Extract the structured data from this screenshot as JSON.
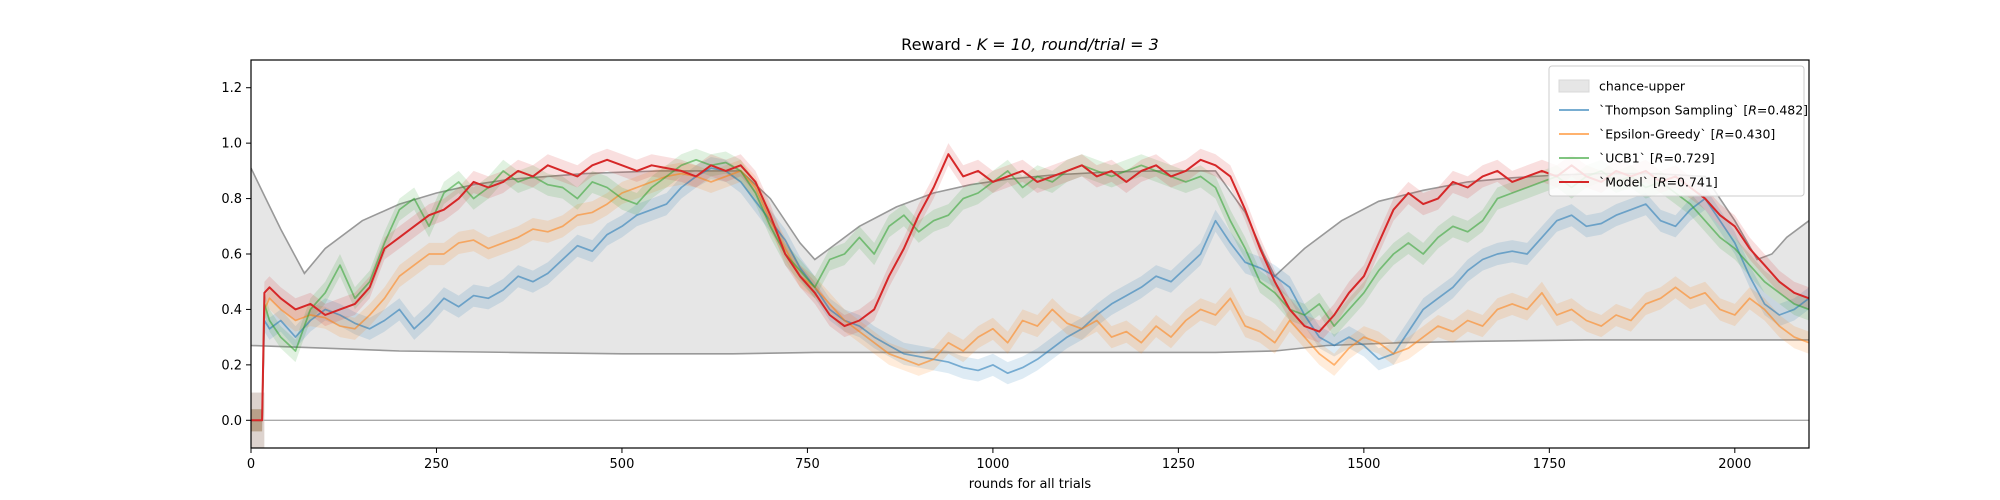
{
  "chart_data": {
    "type": "line",
    "title_prefix": "Reward - ",
    "title_k": "K = 10, ",
    "title_round": "round/trial = 3",
    "xlabel": "rounds for all trials",
    "ylabel": "",
    "xlim": [
      0,
      2100
    ],
    "ylim": [
      -0.1,
      1.3
    ],
    "xticks": [
      0,
      250,
      500,
      750,
      1000,
      1250,
      1500,
      1750,
      2000
    ],
    "yticks": [
      0.0,
      0.2,
      0.4,
      0.6,
      0.8,
      1.0,
      1.2
    ],
    "grid": false,
    "legend_position": "top-right",
    "chance_band": {
      "name": "chance-upper",
      "color": "#e6e6e6",
      "upper": [
        [
          0,
          0.91
        ],
        [
          20,
          0.8
        ],
        [
          40,
          0.69
        ],
        [
          60,
          0.59
        ],
        [
          72,
          0.53
        ],
        [
          100,
          0.62
        ],
        [
          150,
          0.72
        ],
        [
          200,
          0.78
        ],
        [
          250,
          0.82
        ],
        [
          300,
          0.85
        ],
        [
          350,
          0.87
        ],
        [
          400,
          0.88
        ],
        [
          450,
          0.89
        ],
        [
          500,
          0.895
        ],
        [
          550,
          0.9
        ],
        [
          600,
          0.9
        ],
        [
          660,
          0.9
        ],
        [
          700,
          0.8
        ],
        [
          740,
          0.64
        ],
        [
          760,
          0.58
        ],
        [
          780,
          0.62
        ],
        [
          820,
          0.7
        ],
        [
          870,
          0.77
        ],
        [
          920,
          0.82
        ],
        [
          970,
          0.85
        ],
        [
          1020,
          0.87
        ],
        [
          1080,
          0.885
        ],
        [
          1150,
          0.895
        ],
        [
          1220,
          0.9
        ],
        [
          1300,
          0.9
        ],
        [
          1340,
          0.75
        ],
        [
          1365,
          0.6
        ],
        [
          1380,
          0.52
        ],
        [
          1420,
          0.62
        ],
        [
          1470,
          0.72
        ],
        [
          1520,
          0.79
        ],
        [
          1580,
          0.83
        ],
        [
          1640,
          0.86
        ],
        [
          1700,
          0.875
        ],
        [
          1760,
          0.885
        ],
        [
          1820,
          0.89
        ],
        [
          1890,
          0.89
        ],
        [
          1960,
          0.88
        ],
        [
          2000,
          0.72
        ],
        [
          2030,
          0.58
        ],
        [
          2050,
          0.6
        ],
        [
          2070,
          0.66
        ],
        [
          2100,
          0.72
        ]
      ],
      "lower": [
        [
          0,
          0.27
        ],
        [
          100,
          0.26
        ],
        [
          200,
          0.25
        ],
        [
          350,
          0.245
        ],
        [
          500,
          0.24
        ],
        [
          650,
          0.24
        ],
        [
          760,
          0.245
        ],
        [
          900,
          0.245
        ],
        [
          1000,
          0.245
        ],
        [
          1100,
          0.245
        ],
        [
          1200,
          0.245
        ],
        [
          1300,
          0.245
        ],
        [
          1380,
          0.25
        ],
        [
          1450,
          0.27
        ],
        [
          1550,
          0.28
        ],
        [
          1650,
          0.285
        ],
        [
          1800,
          0.29
        ],
        [
          1950,
          0.29
        ],
        [
          2100,
          0.29
        ]
      ]
    },
    "zero_line": 0.0,
    "series": [
      {
        "name": "`Thompson Sampling` [",
        "r_value": "=0.482]",
        "color": "#1f77b4",
        "band": 0.04,
        "x": [
          0,
          15,
          18,
          25,
          40,
          60,
          80,
          100,
          120,
          140,
          160,
          180,
          200,
          220,
          240,
          260,
          280,
          300,
          320,
          340,
          360,
          380,
          400,
          420,
          440,
          460,
          480,
          500,
          520,
          540,
          560,
          580,
          600,
          620,
          640,
          660,
          680,
          700,
          720,
          740,
          760,
          780,
          800,
          820,
          840,
          860,
          880,
          900,
          920,
          940,
          960,
          980,
          1000,
          1020,
          1040,
          1060,
          1080,
          1100,
          1120,
          1140,
          1160,
          1180,
          1200,
          1220,
          1240,
          1260,
          1280,
          1300,
          1320,
          1340,
          1360,
          1380,
          1400,
          1420,
          1440,
          1460,
          1480,
          1500,
          1520,
          1540,
          1560,
          1580,
          1600,
          1620,
          1640,
          1660,
          1680,
          1700,
          1720,
          1740,
          1760,
          1780,
          1800,
          1820,
          1840,
          1860,
          1880,
          1900,
          1920,
          1940,
          1960,
          1980,
          2000,
          2020,
          2040,
          2060,
          2080,
          2100
        ],
        "y": [
          0.0,
          0.0,
          0.36,
          0.33,
          0.36,
          0.3,
          0.36,
          0.4,
          0.38,
          0.35,
          0.33,
          0.36,
          0.4,
          0.33,
          0.38,
          0.44,
          0.41,
          0.45,
          0.44,
          0.47,
          0.52,
          0.5,
          0.53,
          0.58,
          0.63,
          0.61,
          0.67,
          0.7,
          0.74,
          0.76,
          0.78,
          0.84,
          0.88,
          0.91,
          0.9,
          0.86,
          0.79,
          0.72,
          0.65,
          0.55,
          0.48,
          0.4,
          0.36,
          0.34,
          0.3,
          0.27,
          0.24,
          0.23,
          0.22,
          0.21,
          0.19,
          0.18,
          0.2,
          0.17,
          0.19,
          0.22,
          0.26,
          0.3,
          0.33,
          0.38,
          0.42,
          0.45,
          0.48,
          0.52,
          0.5,
          0.55,
          0.6,
          0.72,
          0.64,
          0.57,
          0.55,
          0.52,
          0.48,
          0.38,
          0.3,
          0.27,
          0.3,
          0.27,
          0.22,
          0.24,
          0.32,
          0.4,
          0.44,
          0.48,
          0.54,
          0.58,
          0.6,
          0.61,
          0.6,
          0.66,
          0.72,
          0.74,
          0.7,
          0.71,
          0.74,
          0.76,
          0.78,
          0.72,
          0.7,
          0.76,
          0.8,
          0.72,
          0.64,
          0.52,
          0.42,
          0.38,
          0.4,
          0.44
        ]
      },
      {
        "name": "`Epsilon-Greedy` [",
        "r_value": "=0.430]",
        "color": "#ff7f0e",
        "band": 0.04,
        "x": [
          0,
          15,
          18,
          25,
          40,
          60,
          80,
          100,
          120,
          140,
          160,
          180,
          200,
          220,
          240,
          260,
          280,
          300,
          320,
          340,
          360,
          380,
          400,
          420,
          440,
          460,
          480,
          500,
          520,
          540,
          560,
          580,
          600,
          620,
          640,
          660,
          680,
          700,
          720,
          740,
          760,
          780,
          800,
          820,
          840,
          860,
          880,
          900,
          920,
          940,
          960,
          980,
          1000,
          1020,
          1040,
          1060,
          1080,
          1100,
          1120,
          1140,
          1160,
          1180,
          1200,
          1220,
          1240,
          1260,
          1280,
          1300,
          1320,
          1340,
          1360,
          1380,
          1400,
          1420,
          1440,
          1460,
          1480,
          1500,
          1520,
          1540,
          1560,
          1580,
          1600,
          1620,
          1640,
          1660,
          1680,
          1700,
          1720,
          1740,
          1760,
          1780,
          1800,
          1820,
          1840,
          1860,
          1880,
          1900,
          1920,
          1940,
          1960,
          1980,
          2000,
          2020,
          2040,
          2060,
          2080,
          2100
        ],
        "y": [
          0.0,
          0.0,
          0.4,
          0.44,
          0.4,
          0.36,
          0.38,
          0.37,
          0.34,
          0.33,
          0.38,
          0.44,
          0.52,
          0.56,
          0.6,
          0.6,
          0.64,
          0.65,
          0.62,
          0.64,
          0.66,
          0.69,
          0.68,
          0.7,
          0.74,
          0.75,
          0.78,
          0.82,
          0.84,
          0.86,
          0.88,
          0.89,
          0.88,
          0.86,
          0.88,
          0.9,
          0.84,
          0.72,
          0.62,
          0.52,
          0.48,
          0.42,
          0.36,
          0.32,
          0.28,
          0.24,
          0.22,
          0.2,
          0.22,
          0.28,
          0.25,
          0.3,
          0.33,
          0.28,
          0.36,
          0.34,
          0.4,
          0.35,
          0.33,
          0.36,
          0.3,
          0.32,
          0.28,
          0.34,
          0.3,
          0.36,
          0.4,
          0.38,
          0.44,
          0.34,
          0.32,
          0.28,
          0.36,
          0.3,
          0.24,
          0.2,
          0.26,
          0.3,
          0.28,
          0.24,
          0.26,
          0.3,
          0.34,
          0.32,
          0.36,
          0.34,
          0.4,
          0.42,
          0.4,
          0.46,
          0.38,
          0.4,
          0.36,
          0.34,
          0.38,
          0.36,
          0.42,
          0.44,
          0.48,
          0.44,
          0.46,
          0.4,
          0.38,
          0.44,
          0.4,
          0.34,
          0.3,
          0.28
        ]
      },
      {
        "name": "`UCB1` [",
        "r_value": "=0.729]",
        "color": "#2ca02c",
        "band": 0.04,
        "x": [
          0,
          15,
          18,
          25,
          40,
          60,
          80,
          100,
          120,
          140,
          160,
          180,
          200,
          220,
          240,
          260,
          280,
          300,
          320,
          340,
          360,
          380,
          400,
          420,
          440,
          460,
          480,
          500,
          520,
          540,
          560,
          580,
          600,
          620,
          640,
          660,
          680,
          700,
          720,
          740,
          760,
          780,
          800,
          820,
          840,
          860,
          880,
          900,
          920,
          940,
          960,
          980,
          1000,
          1020,
          1040,
          1060,
          1080,
          1100,
          1120,
          1140,
          1160,
          1180,
          1200,
          1220,
          1240,
          1260,
          1280,
          1300,
          1320,
          1340,
          1360,
          1380,
          1400,
          1420,
          1440,
          1460,
          1480,
          1500,
          1520,
          1540,
          1560,
          1580,
          1600,
          1620,
          1640,
          1660,
          1680,
          1700,
          1720,
          1740,
          1760,
          1780,
          1800,
          1820,
          1840,
          1860,
          1880,
          1900,
          1920,
          1940,
          1960,
          1980,
          2000,
          2020,
          2040,
          2060,
          2080,
          2100
        ],
        "y": [
          0.0,
          0.0,
          0.42,
          0.36,
          0.3,
          0.25,
          0.4,
          0.46,
          0.56,
          0.44,
          0.5,
          0.64,
          0.76,
          0.8,
          0.7,
          0.82,
          0.86,
          0.8,
          0.84,
          0.9,
          0.86,
          0.88,
          0.85,
          0.84,
          0.8,
          0.86,
          0.84,
          0.8,
          0.78,
          0.84,
          0.88,
          0.92,
          0.94,
          0.92,
          0.93,
          0.9,
          0.82,
          0.7,
          0.6,
          0.54,
          0.48,
          0.58,
          0.6,
          0.66,
          0.6,
          0.7,
          0.74,
          0.68,
          0.72,
          0.74,
          0.8,
          0.82,
          0.86,
          0.9,
          0.84,
          0.88,
          0.86,
          0.9,
          0.92,
          0.9,
          0.88,
          0.9,
          0.92,
          0.9,
          0.88,
          0.86,
          0.88,
          0.84,
          0.72,
          0.62,
          0.5,
          0.46,
          0.4,
          0.38,
          0.42,
          0.34,
          0.4,
          0.46,
          0.54,
          0.6,
          0.64,
          0.6,
          0.66,
          0.7,
          0.68,
          0.72,
          0.8,
          0.82,
          0.84,
          0.86,
          0.88,
          0.84,
          0.88,
          0.9,
          0.86,
          0.88,
          0.84,
          0.86,
          0.82,
          0.78,
          0.72,
          0.66,
          0.62,
          0.56,
          0.5,
          0.46,
          0.42,
          0.4
        ]
      },
      {
        "name": "`Model` [",
        "r_value": "=0.741]",
        "color": "#d62728",
        "band": 0.04,
        "x": [
          0,
          15,
          18,
          25,
          40,
          60,
          80,
          100,
          120,
          140,
          160,
          180,
          200,
          220,
          240,
          260,
          280,
          300,
          320,
          340,
          360,
          380,
          400,
          420,
          440,
          460,
          480,
          500,
          520,
          540,
          560,
          580,
          600,
          620,
          640,
          660,
          680,
          700,
          720,
          740,
          760,
          780,
          800,
          820,
          840,
          860,
          880,
          900,
          920,
          940,
          960,
          980,
          1000,
          1020,
          1040,
          1060,
          1080,
          1100,
          1120,
          1140,
          1160,
          1180,
          1200,
          1220,
          1240,
          1260,
          1280,
          1300,
          1320,
          1340,
          1360,
          1380,
          1400,
          1420,
          1440,
          1460,
          1480,
          1500,
          1520,
          1540,
          1560,
          1580,
          1600,
          1620,
          1640,
          1660,
          1680,
          1700,
          1720,
          1740,
          1760,
          1780,
          1800,
          1820,
          1840,
          1860,
          1880,
          1900,
          1920,
          1940,
          1960,
          1980,
          2000,
          2020,
          2040,
          2060,
          2080,
          2100
        ],
        "y": [
          0.0,
          0.0,
          0.46,
          0.48,
          0.44,
          0.4,
          0.42,
          0.38,
          0.4,
          0.42,
          0.48,
          0.62,
          0.66,
          0.7,
          0.74,
          0.76,
          0.8,
          0.86,
          0.84,
          0.86,
          0.9,
          0.88,
          0.92,
          0.9,
          0.88,
          0.92,
          0.94,
          0.92,
          0.9,
          0.92,
          0.91,
          0.9,
          0.88,
          0.92,
          0.9,
          0.92,
          0.86,
          0.74,
          0.6,
          0.52,
          0.46,
          0.38,
          0.34,
          0.36,
          0.4,
          0.52,
          0.62,
          0.74,
          0.84,
          0.96,
          0.88,
          0.9,
          0.86,
          0.88,
          0.9,
          0.86,
          0.88,
          0.9,
          0.92,
          0.88,
          0.9,
          0.86,
          0.9,
          0.92,
          0.88,
          0.9,
          0.94,
          0.92,
          0.88,
          0.76,
          0.62,
          0.5,
          0.4,
          0.34,
          0.32,
          0.38,
          0.46,
          0.52,
          0.64,
          0.76,
          0.82,
          0.78,
          0.8,
          0.86,
          0.84,
          0.88,
          0.9,
          0.86,
          0.88,
          0.9,
          0.88,
          0.92,
          0.88,
          0.86,
          0.9,
          0.88,
          0.9,
          0.86,
          0.88,
          0.84,
          0.8,
          0.74,
          0.7,
          0.62,
          0.56,
          0.5,
          0.46,
          0.44
        ]
      }
    ]
  }
}
